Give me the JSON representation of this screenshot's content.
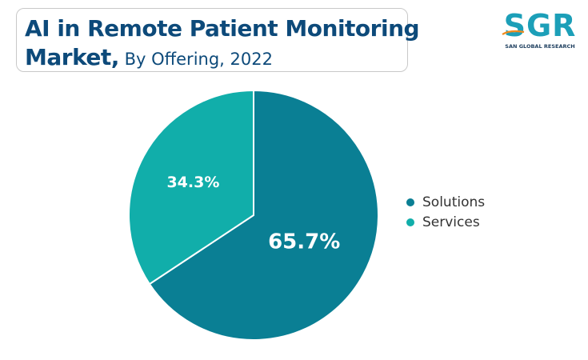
{
  "header": {
    "title_line1": "AI in Remote Patient Monitoring",
    "title_line2_bold": "Market,",
    "title_line2_rest": " By Offering, 2022"
  },
  "logo": {
    "text": "SGR",
    "subtitle": "SAN GLOBAL RESEARCH"
  },
  "colors": {
    "solutions": "#0a7f94",
    "services": "#11aeaa",
    "title": "#0d4a7a"
  },
  "chart_data": {
    "type": "pie",
    "title": "AI in Remote Patient Monitoring Market, By Offering, 2022",
    "slices": [
      {
        "label": "Solutions",
        "value": 65.7,
        "display": "65.7%",
        "color": "#0a7f94"
      },
      {
        "label": "Services",
        "value": 34.3,
        "display": "34.3%",
        "color": "#11aeaa"
      }
    ],
    "legend_position": "right"
  }
}
